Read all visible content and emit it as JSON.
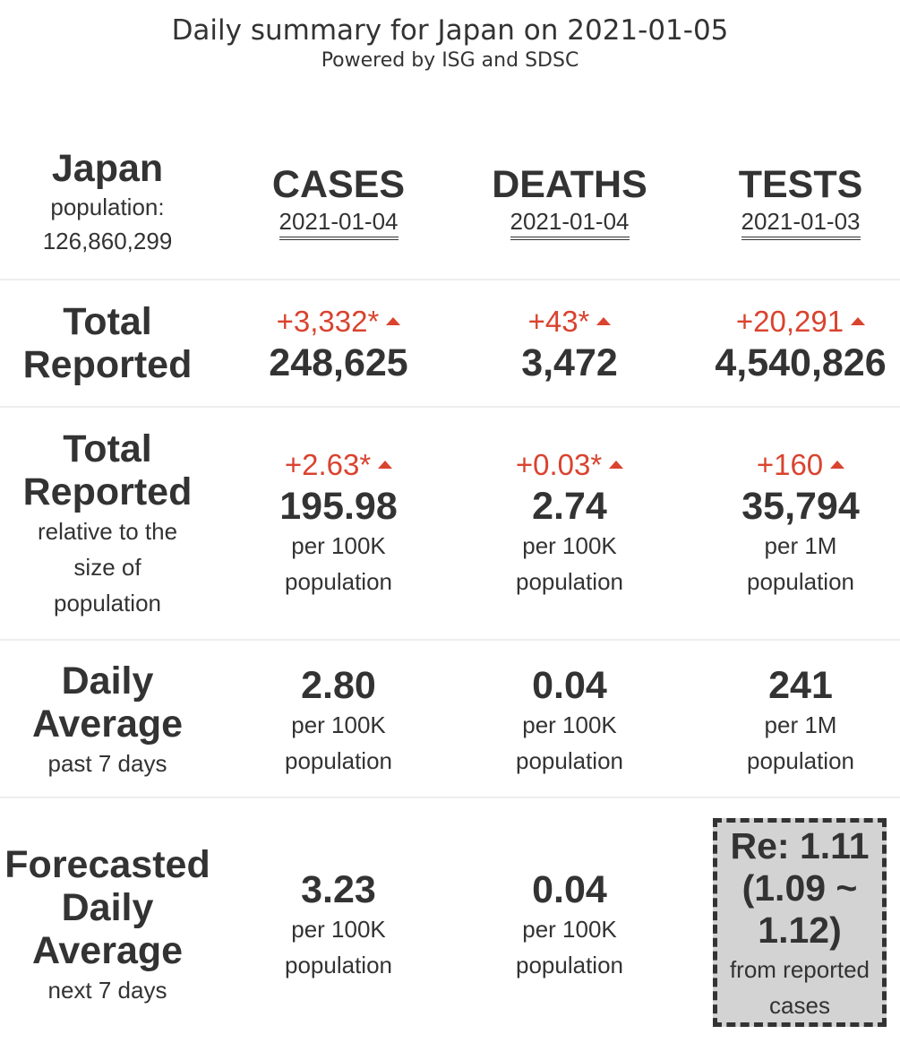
{
  "header": {
    "title": "Daily summary for Japan on 2021-01-05",
    "subtitle": "Powered by ISG and SDSC"
  },
  "region": {
    "name": "Japan",
    "population_label": "population:",
    "population_value": "126,860,299"
  },
  "columns": [
    {
      "label": "CASES",
      "date": "2021-01-04"
    },
    {
      "label": "DEATHS",
      "date": "2021-01-04"
    },
    {
      "label": "TESTS",
      "date": "2021-01-03"
    }
  ],
  "total_reported": {
    "label_line1": "Total",
    "label_line2": "Reported",
    "values": [
      {
        "delta": "+3,332*",
        "value": "248,625"
      },
      {
        "delta": "+43*",
        "value": "3,472"
      },
      {
        "delta": "+20,291",
        "value": "4,540,826"
      }
    ]
  },
  "relative": {
    "label_line1": "Total",
    "label_line2": "Reported",
    "sub1": "relative to the",
    "sub2": "size of",
    "sub3": "population",
    "values": [
      {
        "delta": "+2.63*",
        "value": "195.98",
        "unit1": "per 100K",
        "unit2": "population"
      },
      {
        "delta": "+0.03*",
        "value": "2.74",
        "unit1": "per 100K",
        "unit2": "population"
      },
      {
        "delta": "+160",
        "value": "35,794",
        "unit1": "per 1M",
        "unit2": "population"
      }
    ]
  },
  "daily_average": {
    "label_line1": "Daily",
    "label_line2": "Average",
    "sub": "past 7 days",
    "values": [
      {
        "value": "2.80",
        "unit1": "per 100K",
        "unit2": "population"
      },
      {
        "value": "0.04",
        "unit1": "per 100K",
        "unit2": "population"
      },
      {
        "value": "241",
        "unit1": "per 1M",
        "unit2": "population"
      }
    ]
  },
  "forecast": {
    "label_line1": "Forecasted",
    "label_line2": "Daily",
    "label_line3": "Average",
    "sub": "next 7 days",
    "values": [
      {
        "value": "3.23",
        "unit1": "per 100K",
        "unit2": "population"
      },
      {
        "value": "0.04",
        "unit1": "per 100K",
        "unit2": "population"
      }
    ],
    "re": {
      "line1": "Re: 1.11",
      "line2": "(1.09 ~",
      "line3": "1.12)",
      "note1": "from reported",
      "note2": "cases"
    }
  },
  "colors": {
    "text": "#333333",
    "delta_up": "#d9432f",
    "separator": "#eeeeee",
    "re_box_bg": "#d3d3d3"
  },
  "icons": {
    "increase": "triangle-up-icon"
  }
}
